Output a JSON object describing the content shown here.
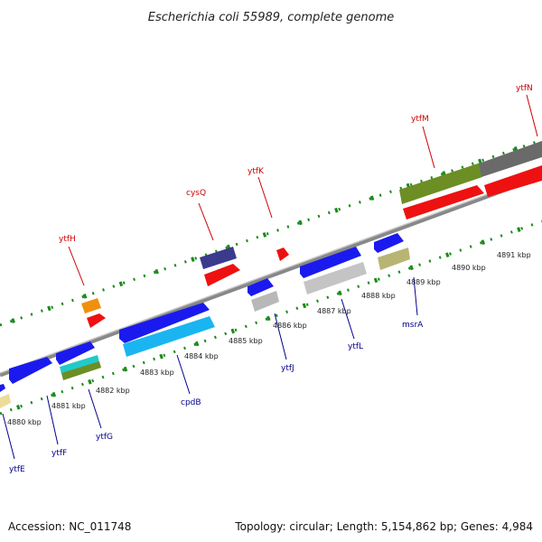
{
  "title": "Escherichia coli 55989, complete genome",
  "footer": {
    "accession": "Accession: NC_011748",
    "topology": "Topology: circular; Length: 5,154,862 bp; Genes: 4,984"
  },
  "colors": {
    "top_label": "#cc0000",
    "bottom_label": "#00008b",
    "dots": "#1a8a1a",
    "backbone": "#8f8f8f"
  },
  "kbp_ticks": [
    "4880 kbp",
    "4881 kbp",
    "4882 kbp",
    "4883 kbp",
    "4884 kbp",
    "4885 kbp",
    "4886 kbp",
    "4887 kbp",
    "4888 kbp",
    "4889 kbp",
    "4890 kbp",
    "4891 kbp"
  ],
  "gene_labels_top": [
    "ytfH",
    "cysQ",
    "ytfK",
    "ytfM",
    "ytfN"
  ],
  "gene_labels_bottom": [
    "ytfE",
    "ytfF",
    "ytfG",
    "cpdB",
    "ytfJ",
    "ytfL",
    "msrA"
  ]
}
